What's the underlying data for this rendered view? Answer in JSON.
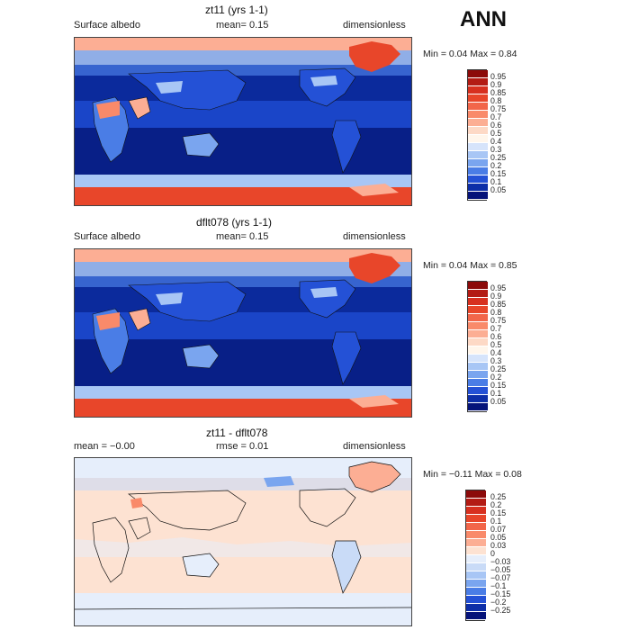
{
  "season": "ANN",
  "panels": [
    {
      "title": "zt11 (yrs 1-1)",
      "left": "Surface albedo",
      "middle": "mean=   0.15",
      "right": "dimensionless",
      "minmax": "Min =    0.04  Max =    0.84",
      "colorbar_labels": [
        "0.95",
        "0.9",
        "0.85",
        "0.8",
        "0.75",
        "0.7",
        "0.6",
        "0.5",
        "0.4",
        "0.3",
        "0.25",
        "0.2",
        "0.15",
        "0.1",
        "0.05"
      ],
      "colorbar_colors": [
        "#8c0a0a",
        "#b31b14",
        "#d7301f",
        "#e8462a",
        "#f2664a",
        "#f98a6a",
        "#fcae94",
        "#fdd9c6",
        "#fff6ec",
        "#d6e4fb",
        "#a8c6f5",
        "#7aa5ef",
        "#4a7de6",
        "#2451d6",
        "#0d2ea8",
        "#05137a"
      ]
    },
    {
      "title": "dflt078 (yrs 1-1)",
      "left": "Surface albedo",
      "middle": "mean=   0.15",
      "right": "dimensionless",
      "minmax": "Min =    0.04  Max =    0.85",
      "colorbar_labels": [
        "0.95",
        "0.9",
        "0.85",
        "0.8",
        "0.75",
        "0.7",
        "0.6",
        "0.5",
        "0.4",
        "0.3",
        "0.25",
        "0.2",
        "0.15",
        "0.1",
        "0.05"
      ],
      "colorbar_colors": [
        "#8c0a0a",
        "#b31b14",
        "#d7301f",
        "#e8462a",
        "#f2664a",
        "#f98a6a",
        "#fcae94",
        "#fdd9c6",
        "#fff6ec",
        "#d6e4fb",
        "#a8c6f5",
        "#7aa5ef",
        "#4a7de6",
        "#2451d6",
        "#0d2ea8",
        "#05137a"
      ]
    },
    {
      "title": "zt11 - dflt078",
      "left": "mean =   −0.00",
      "middle": "rmse =    0.01",
      "right": "dimensionless",
      "minmax": "Min =   −0.11  Max =    0.08",
      "colorbar_labels": [
        "0.25",
        "0.2",
        "0.15",
        "0.1",
        "0.07",
        "0.05",
        "0.03",
        "0",
        "−0.03",
        "−0.05",
        "−0.07",
        "−0.1",
        "−0.15",
        "−0.2",
        "−0.25"
      ],
      "colorbar_colors": [
        "#8c0a0a",
        "#b31b14",
        "#d7301f",
        "#e8462a",
        "#f2664a",
        "#f98a6a",
        "#fcae94",
        "#fde2d2",
        "#e6eefb",
        "#c9dbf7",
        "#a8c6f5",
        "#7aa5ef",
        "#4a7de6",
        "#2451d6",
        "#0d2ea8",
        "#05137a"
      ]
    }
  ]
}
